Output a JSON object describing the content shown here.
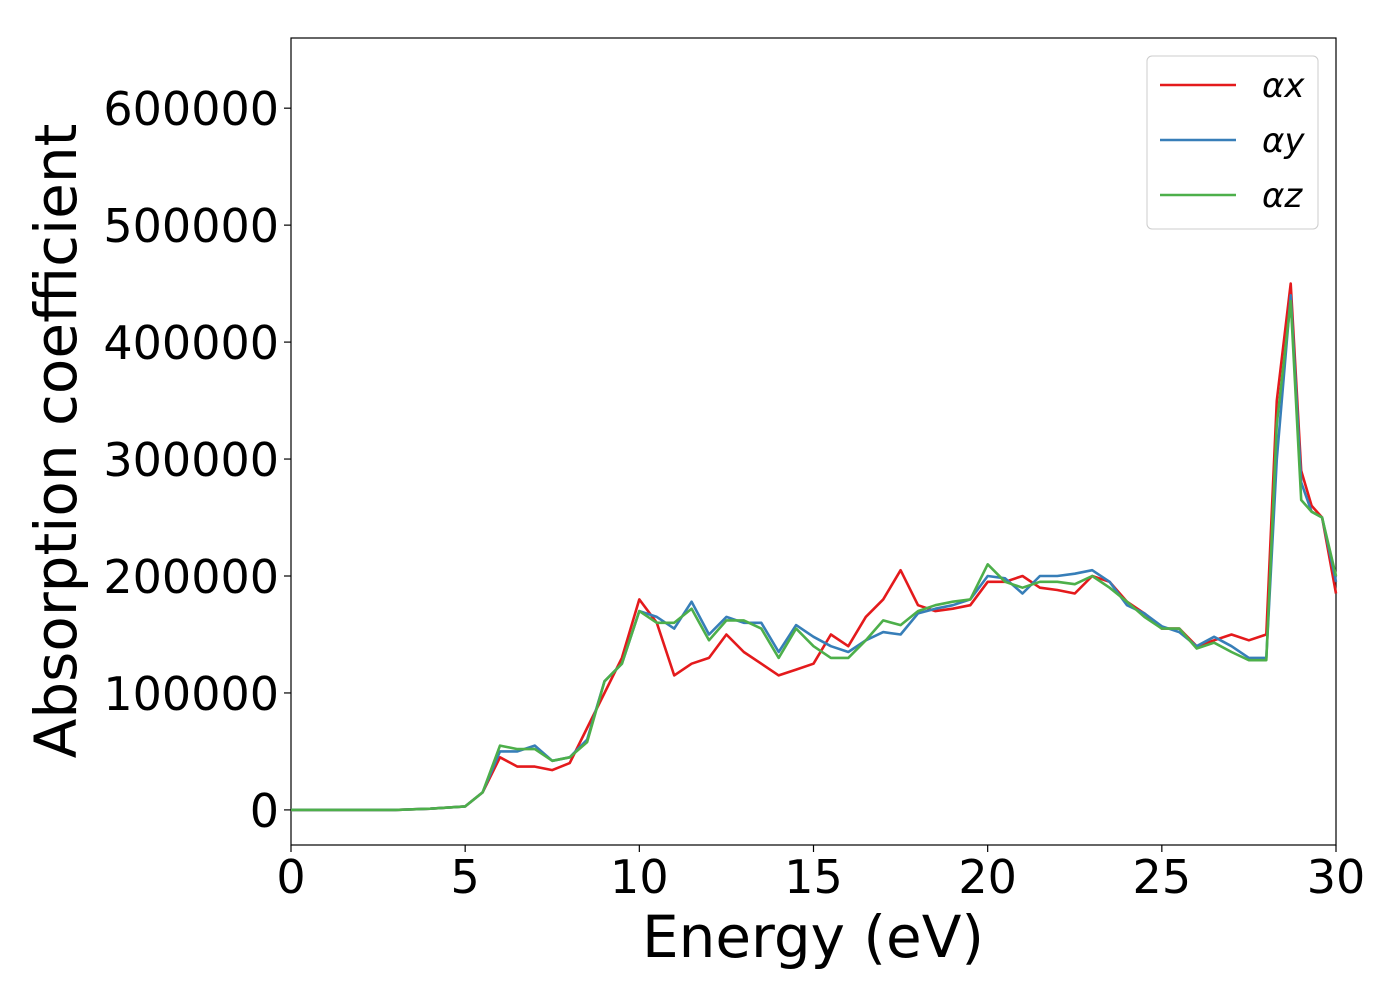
{
  "chart_data": {
    "type": "line",
    "xlabel": "Energy (eV)",
    "ylabel": "Absorption coefficient",
    "x": [
      0,
      1,
      2,
      3,
      4,
      5,
      5.5,
      6,
      6.5,
      7,
      7.5,
      8,
      8.5,
      9,
      9.5,
      10,
      10.5,
      11,
      11.5,
      12,
      12.5,
      13,
      13.5,
      14,
      14.5,
      15,
      15.5,
      16,
      16.5,
      17,
      17.5,
      18,
      18.5,
      19,
      19.5,
      20,
      20.5,
      21,
      21.5,
      22,
      22.5,
      23,
      23.5,
      24,
      24.5,
      25,
      25.5,
      26,
      26.5,
      27,
      27.5,
      28,
      28.3,
      28.7,
      29,
      29.3,
      29.6,
      30
    ],
    "series": [
      {
        "name": "αx",
        "color": "#e41a1c",
        "values": [
          0,
          0,
          0,
          0,
          1000,
          3000,
          15000,
          45000,
          37000,
          37000,
          34000,
          40000,
          70000,
          100000,
          130000,
          180000,
          160000,
          115000,
          125000,
          130000,
          150000,
          135000,
          125000,
          115000,
          120000,
          125000,
          150000,
          140000,
          165000,
          180000,
          205000,
          175000,
          170000,
          172000,
          175000,
          195000,
          195000,
          200000,
          190000,
          188000,
          185000,
          200000,
          195000,
          178000,
          168000,
          155000,
          155000,
          140000,
          145000,
          150000,
          145000,
          150000,
          350000,
          450000,
          290000,
          260000,
          250000,
          185000
        ]
      },
      {
        "name": "αy",
        "color": "#377eb8",
        "values": [
          0,
          0,
          0,
          0,
          1000,
          3000,
          15000,
          50000,
          50000,
          55000,
          42000,
          45000,
          60000,
          110000,
          125000,
          170000,
          165000,
          155000,
          178000,
          150000,
          165000,
          160000,
          160000,
          135000,
          158000,
          148000,
          140000,
          135000,
          145000,
          152000,
          150000,
          168000,
          172000,
          175000,
          180000,
          200000,
          198000,
          185000,
          200000,
          200000,
          202000,
          205000,
          195000,
          175000,
          168000,
          157000,
          152000,
          140000,
          148000,
          140000,
          130000,
          130000,
          300000,
          440000,
          280000,
          255000,
          250000,
          195000
        ]
      },
      {
        "name": "αz",
        "color": "#4daf4a",
        "values": [
          0,
          0,
          0,
          0,
          1000,
          3000,
          15000,
          55000,
          52000,
          52000,
          42000,
          45000,
          58000,
          110000,
          125000,
          170000,
          160000,
          160000,
          172000,
          145000,
          162000,
          162000,
          155000,
          130000,
          155000,
          140000,
          130000,
          130000,
          145000,
          162000,
          158000,
          170000,
          175000,
          178000,
          180000,
          210000,
          195000,
          190000,
          195000,
          195000,
          193000,
          200000,
          190000,
          178000,
          165000,
          155000,
          155000,
          138000,
          143000,
          135000,
          128000,
          128000,
          330000,
          435000,
          265000,
          255000,
          250000,
          200000
        ]
      }
    ],
    "xlim": [
      0,
      30
    ],
    "xticks": [
      0,
      5,
      10,
      15,
      20,
      25,
      30
    ],
    "ylim": [
      -30000,
      660000
    ],
    "yticks": [
      0,
      100000,
      200000,
      300000,
      400000,
      500000,
      600000
    ],
    "legend": "upper right",
    "grid": false
  }
}
